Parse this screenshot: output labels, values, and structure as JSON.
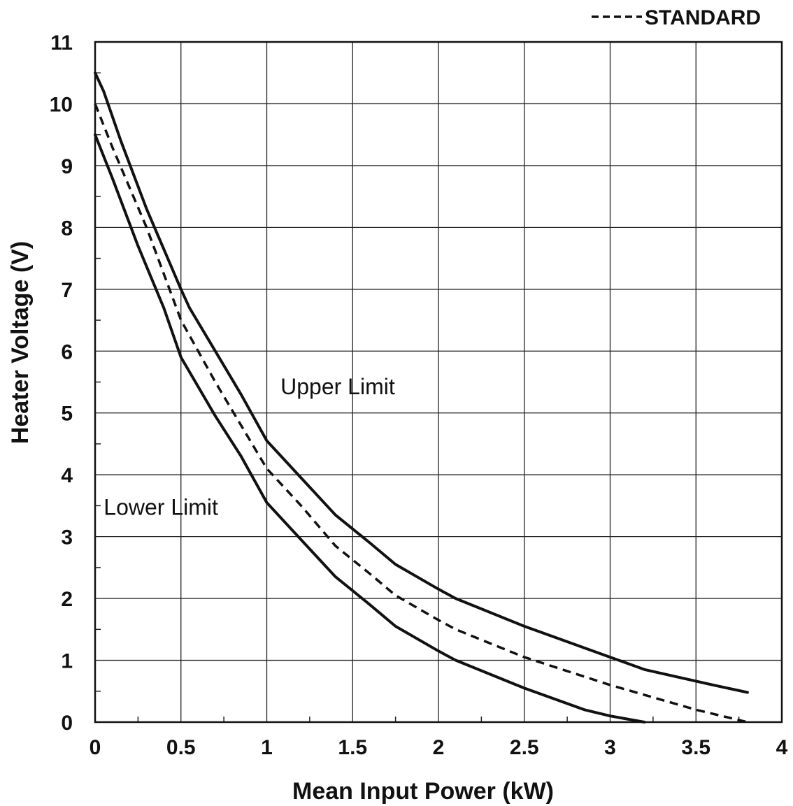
{
  "chart_data": {
    "type": "line",
    "title": "",
    "xlabel": "Mean Input Power (kW)",
    "ylabel": "Heater Voltage (V)",
    "xlim": [
      0,
      4
    ],
    "ylim": [
      0,
      11
    ],
    "x_ticks": [
      "0",
      "0.5",
      "1",
      "1.5",
      "2",
      "2.5",
      "3",
      "3.5",
      "4"
    ],
    "y_ticks": [
      "0",
      "1",
      "2",
      "3",
      "4",
      "5",
      "6",
      "7",
      "8",
      "9",
      "10",
      "11"
    ],
    "grid": true,
    "legend": {
      "placement": "top-right",
      "entries": [
        {
          "label": "STANDARD",
          "style": "dashed"
        }
      ]
    },
    "annotations": [
      {
        "text": "Upper Limit",
        "x": 1.08,
        "y": 5.3
      },
      {
        "text": "Lower Limit",
        "x": 0.05,
        "y": 3.35
      }
    ],
    "series": [
      {
        "id": "upper",
        "style": "solid",
        "points": [
          [
            0,
            10.5
          ],
          [
            0.05,
            10.2
          ],
          [
            0.15,
            9.4
          ],
          [
            0.3,
            8.3
          ],
          [
            0.5,
            7.0
          ],
          [
            0.55,
            6.7
          ],
          [
            0.7,
            6.0
          ],
          [
            0.85,
            5.3
          ],
          [
            1.0,
            4.55
          ],
          [
            1.2,
            3.95
          ],
          [
            1.4,
            3.35
          ],
          [
            1.6,
            2.9
          ],
          [
            1.75,
            2.55
          ],
          [
            2.0,
            2.15
          ],
          [
            2.1,
            2.0
          ],
          [
            2.5,
            1.55
          ],
          [
            3.0,
            1.05
          ],
          [
            3.2,
            0.85
          ],
          [
            3.6,
            0.6
          ],
          [
            3.8,
            0.48
          ]
        ]
      },
      {
        "id": "standard",
        "name": "STANDARD",
        "style": "dashed",
        "points": [
          [
            0,
            10.0
          ],
          [
            0.1,
            9.3
          ],
          [
            0.3,
            8.0
          ],
          [
            0.5,
            6.5
          ],
          [
            0.7,
            5.5
          ],
          [
            1.0,
            4.1
          ],
          [
            1.2,
            3.5
          ],
          [
            1.4,
            2.85
          ],
          [
            1.6,
            2.4
          ],
          [
            1.75,
            2.05
          ],
          [
            2.0,
            1.65
          ],
          [
            2.1,
            1.5
          ],
          [
            2.5,
            1.05
          ],
          [
            3.0,
            0.6
          ],
          [
            3.5,
            0.2
          ],
          [
            3.8,
            0.0
          ]
        ]
      },
      {
        "id": "lower",
        "style": "solid",
        "points": [
          [
            0,
            9.5
          ],
          [
            0.1,
            8.8
          ],
          [
            0.25,
            7.7
          ],
          [
            0.4,
            6.7
          ],
          [
            0.5,
            5.9
          ],
          [
            0.7,
            4.95
          ],
          [
            0.85,
            4.3
          ],
          [
            1.0,
            3.55
          ],
          [
            1.2,
            2.95
          ],
          [
            1.4,
            2.35
          ],
          [
            1.6,
            1.9
          ],
          [
            1.75,
            1.55
          ],
          [
            2.0,
            1.15
          ],
          [
            2.1,
            1.0
          ],
          [
            2.5,
            0.55
          ],
          [
            2.85,
            0.2
          ],
          [
            3.0,
            0.1
          ],
          [
            3.2,
            0.0
          ]
        ]
      }
    ]
  }
}
